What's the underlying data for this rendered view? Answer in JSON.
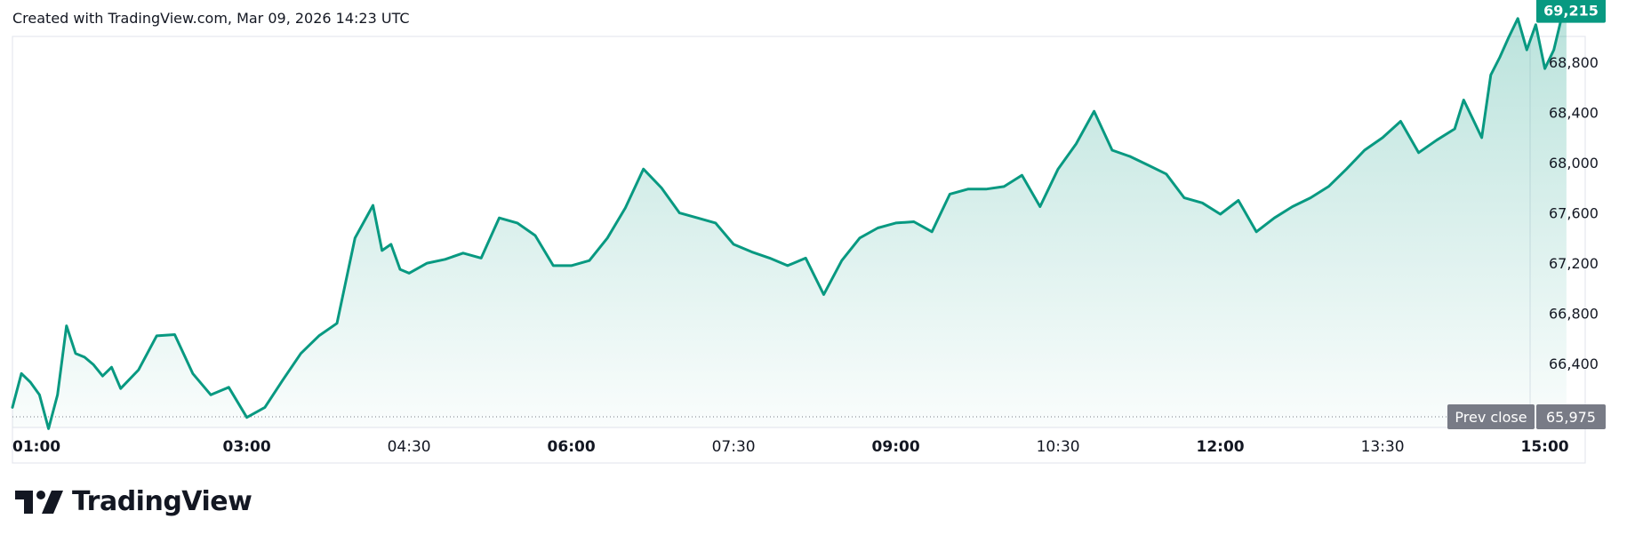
{
  "header": {
    "caption": "Created with TradingView.com, Mar 09, 2026 14:23 UTC"
  },
  "brand": {
    "name": "TradingView",
    "logo_icon": "tradingview-logo-icon"
  },
  "colors": {
    "line": "#089981",
    "fill": "#089981",
    "last_price_bg": "#089981",
    "prev_close_bg": "#787b86",
    "grid_border": "#e0e3eb",
    "text": "#131722"
  },
  "chart_data": {
    "type": "area",
    "xlabel": "",
    "ylabel": "",
    "x_range": [
      "00:50",
      "15:15"
    ],
    "ylim": [
      65850,
      69280
    ],
    "y_ticks": [
      {
        "value": 66400,
        "label": "66,400"
      },
      {
        "value": 66800,
        "label": "66,800"
      },
      {
        "value": 67200,
        "label": "67,200"
      },
      {
        "value": 67600,
        "label": "67,600"
      },
      {
        "value": 68000,
        "label": "68,000"
      },
      {
        "value": 68400,
        "label": "68,400"
      },
      {
        "value": 68800,
        "label": "68,800"
      }
    ],
    "x_ticks": [
      {
        "time": "01:00",
        "label": "01:00",
        "bold": true
      },
      {
        "time": "03:00",
        "label": "03:00",
        "bold": true
      },
      {
        "time": "04:30",
        "label": "04:30",
        "bold": false
      },
      {
        "time": "06:00",
        "label": "06:00",
        "bold": true
      },
      {
        "time": "07:30",
        "label": "07:30",
        "bold": false
      },
      {
        "time": "09:00",
        "label": "09:00",
        "bold": true
      },
      {
        "time": "10:30",
        "label": "10:30",
        "bold": false
      },
      {
        "time": "12:00",
        "label": "12:00",
        "bold": true
      },
      {
        "time": "13:30",
        "label": "13:30",
        "bold": false
      },
      {
        "time": "15:00",
        "label": "15:00",
        "bold": true
      }
    ],
    "last_price": {
      "value": 69215,
      "label": "69,215"
    },
    "prev_close": {
      "value": 65975,
      "label": "65,975",
      "name": "Prev close"
    },
    "series": [
      {
        "x": [
          "00:50",
          "00:55",
          "01:00",
          "01:05",
          "01:10",
          "01:15",
          "01:20",
          "01:25",
          "01:30",
          "01:35",
          "01:40",
          "01:45",
          "01:50",
          "02:00",
          "02:10",
          "02:20",
          "02:30",
          "02:40",
          "02:50",
          "03:00",
          "03:10",
          "03:20",
          "03:30",
          "03:40",
          "03:50",
          "04:00",
          "04:10",
          "04:15",
          "04:20",
          "04:25",
          "04:30",
          "04:40",
          "04:50",
          "05:00",
          "05:10",
          "05:20",
          "05:30",
          "05:40",
          "05:50",
          "06:00",
          "06:10",
          "06:20",
          "06:30",
          "06:40",
          "06:50",
          "07:00",
          "07:10",
          "07:20",
          "07:30",
          "07:40",
          "07:50",
          "08:00",
          "08:10",
          "08:20",
          "08:30",
          "08:40",
          "08:50",
          "09:00",
          "09:10",
          "09:20",
          "09:30",
          "09:40",
          "09:50",
          "10:00",
          "10:10",
          "10:20",
          "10:30",
          "10:40",
          "10:50",
          "11:00",
          "11:10",
          "11:20",
          "11:30",
          "11:40",
          "11:50",
          "12:00",
          "12:10",
          "12:20",
          "12:30",
          "12:40",
          "12:50",
          "13:00",
          "13:10",
          "13:20",
          "13:30",
          "13:40",
          "13:50",
          "14:00",
          "14:10",
          "14:15",
          "14:20",
          "14:25",
          "14:30",
          "14:35",
          "14:40",
          "14:45",
          "14:50",
          "14:55",
          "15:00",
          "15:05",
          "15:10",
          "15:12"
        ],
        "y": [
          66050,
          66320,
          66250,
          66150,
          65880,
          66150,
          66700,
          66480,
          66450,
          66390,
          66300,
          66370,
          66200,
          66350,
          66620,
          66630,
          66320,
          66150,
          66210,
          65970,
          66050,
          66270,
          66480,
          66620,
          66720,
          67400,
          67660,
          67300,
          67350,
          67150,
          67120,
          67200,
          67230,
          67280,
          67240,
          67560,
          67520,
          67420,
          67180,
          67180,
          67220,
          67400,
          67640,
          67950,
          67800,
          67600,
          67560,
          67520,
          67350,
          67290,
          67240,
          67180,
          67240,
          66950,
          67220,
          67400,
          67480,
          67520,
          67530,
          67450,
          67750,
          67790,
          67790,
          67810,
          67900,
          67650,
          67950,
          68150,
          68410,
          68100,
          68050,
          67980,
          67910,
          67720,
          67680,
          67590,
          67700,
          67450,
          67560,
          67650,
          67720,
          67810,
          67950,
          68100,
          68200,
          68330,
          68080,
          68180,
          68270,
          68500,
          68350,
          68200,
          68700,
          68840,
          69000,
          69150,
          68900,
          69100,
          68750,
          68900,
          69200,
          69215
        ]
      }
    ]
  }
}
